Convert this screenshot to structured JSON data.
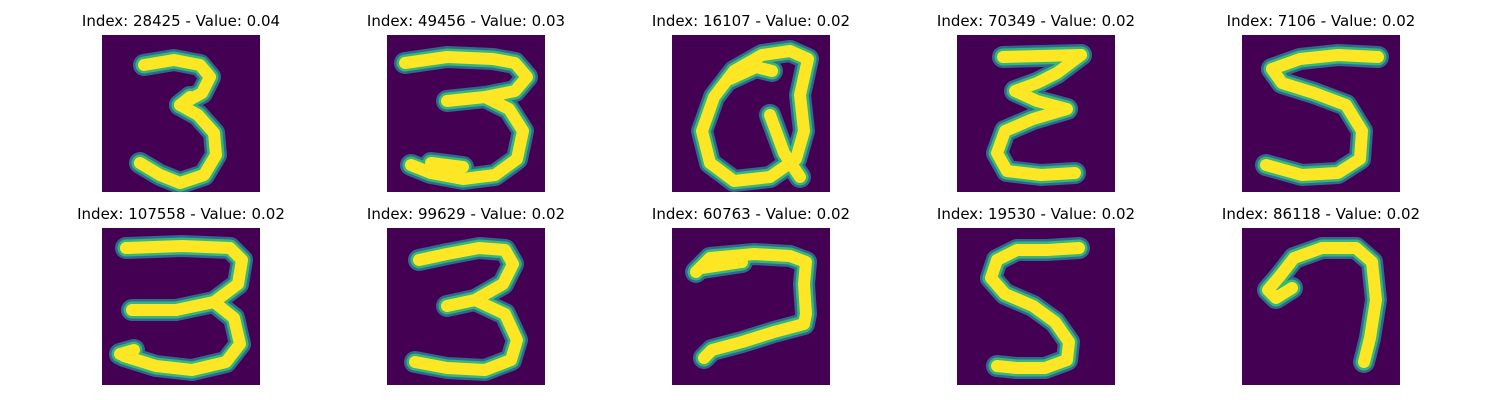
{
  "colors": {
    "background": "#440154",
    "stroke_edge": "#31688e",
    "stroke_mid": "#35b779",
    "stroke_core": "#fde725"
  },
  "panels": [
    {
      "title": "Index: 28425 - Value: 0.04",
      "digit": "3"
    },
    {
      "title": "Index: 49456 - Value: 0.03",
      "digit": "3"
    },
    {
      "title": "Index: 16107 - Value: 0.02",
      "digit": "0"
    },
    {
      "title": "Index: 70349 - Value: 0.02",
      "digit": "3"
    },
    {
      "title": "Index: 7106 - Value: 0.02",
      "digit": "5"
    },
    {
      "title": "Index: 107558 - Value: 0.02",
      "digit": "3"
    },
    {
      "title": "Index: 99629 - Value: 0.02",
      "digit": "3"
    },
    {
      "title": "Index: 60763 - Value: 0.02",
      "digit": "2"
    },
    {
      "title": "Index: 19530 - Value: 0.02",
      "digit": "5"
    },
    {
      "title": "Index: 86118 - Value: 0.02",
      "digit": "7"
    }
  ]
}
